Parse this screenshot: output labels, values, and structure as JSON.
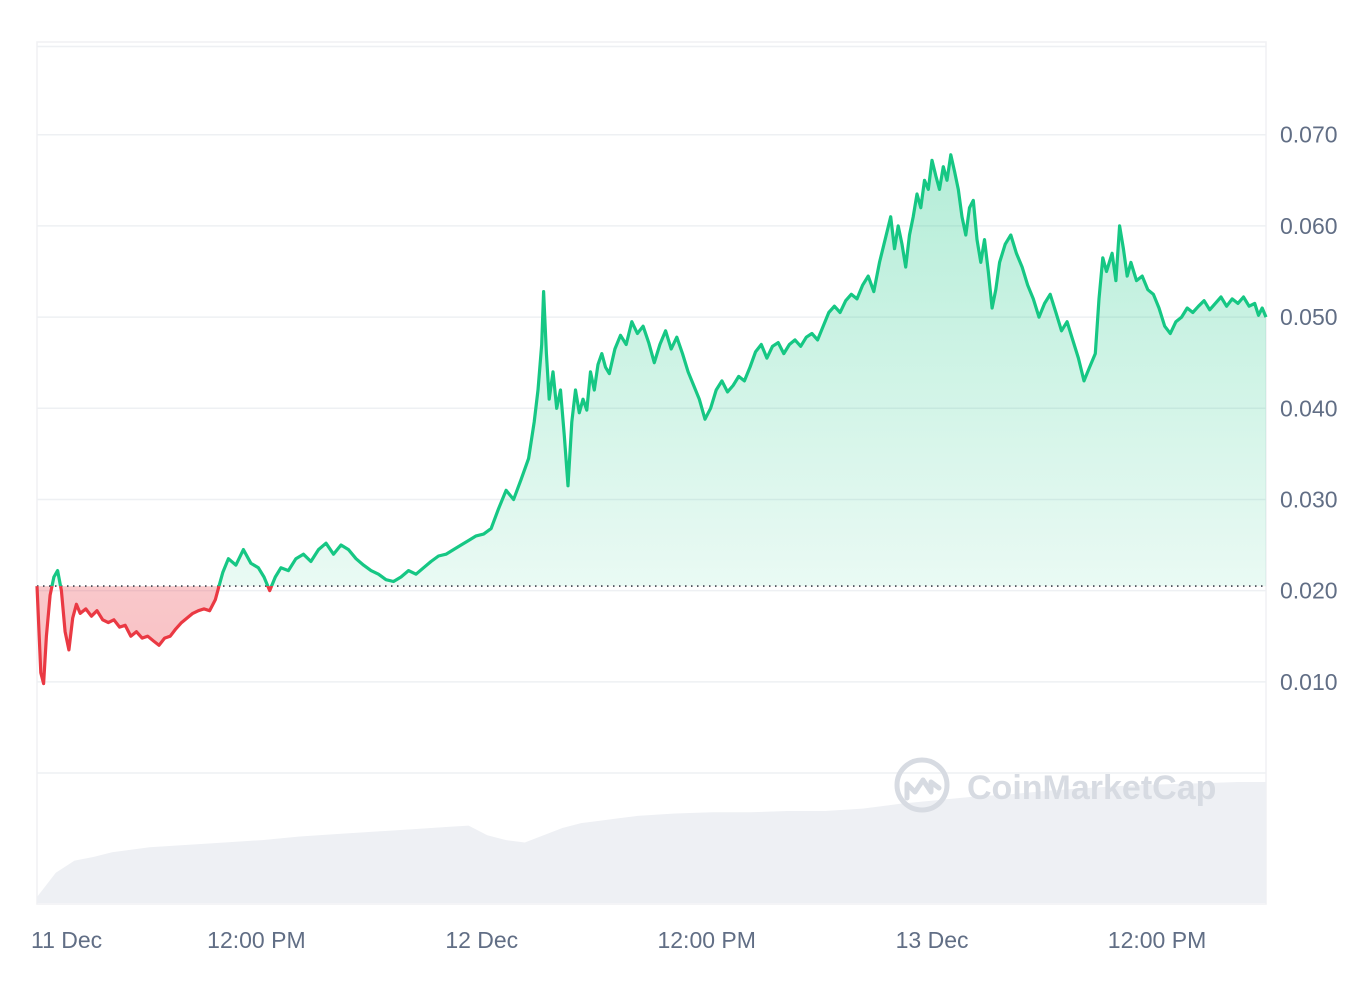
{
  "chart_data": {
    "type": "area",
    "x_axis": {
      "start": "11 Dec 00:00",
      "end": "13 Dec 23:00",
      "ticks": [
        {
          "label": "11 Dec",
          "hours": 0
        },
        {
          "label": "12:00 PM",
          "hours": 12
        },
        {
          "label": "12 Dec",
          "hours": 24
        },
        {
          "label": "12:00 PM",
          "hours": 36
        },
        {
          "label": "13 Dec",
          "hours": 48
        },
        {
          "label": "12:00 PM",
          "hours": 60
        }
      ]
    },
    "y_axis": {
      "position": "right",
      "ylim": [
        0,
        0.08
      ],
      "ticks": [
        "0.010",
        "0.020",
        "0.030",
        "0.040",
        "0.050",
        "0.060",
        "0.070"
      ]
    },
    "baseline": 0.0205,
    "colors": {
      "above": "#16c784",
      "below": "#ea3943",
      "fill_above": "#16c784",
      "fill_below": "#ea3943",
      "volume": "#eef0f4",
      "grid": "#eef0f3",
      "axis_text": "#616e85",
      "watermark": "#d7dbe2"
    },
    "series": [
      {
        "points": [
          [
            0.0,
            0.0205
          ],
          [
            0.2,
            0.011
          ],
          [
            0.35,
            0.0098
          ],
          [
            0.5,
            0.015
          ],
          [
            0.7,
            0.0195
          ],
          [
            0.9,
            0.0215
          ],
          [
            1.1,
            0.0222
          ],
          [
            1.3,
            0.02
          ],
          [
            1.5,
            0.0155
          ],
          [
            1.7,
            0.0135
          ],
          [
            1.9,
            0.017
          ],
          [
            2.1,
            0.0185
          ],
          [
            2.3,
            0.0175
          ],
          [
            2.6,
            0.018
          ],
          [
            2.9,
            0.0172
          ],
          [
            3.2,
            0.0178
          ],
          [
            3.5,
            0.0168
          ],
          [
            3.8,
            0.0165
          ],
          [
            4.1,
            0.0168
          ],
          [
            4.4,
            0.016
          ],
          [
            4.7,
            0.0162
          ],
          [
            5.0,
            0.015
          ],
          [
            5.3,
            0.0155
          ],
          [
            5.6,
            0.0148
          ],
          [
            5.9,
            0.015
          ],
          [
            6.2,
            0.0145
          ],
          [
            6.5,
            0.014
          ],
          [
            6.8,
            0.0148
          ],
          [
            7.1,
            0.015
          ],
          [
            7.4,
            0.0158
          ],
          [
            7.7,
            0.0165
          ],
          [
            8.0,
            0.017
          ],
          [
            8.3,
            0.0175
          ],
          [
            8.6,
            0.0178
          ],
          [
            8.9,
            0.018
          ],
          [
            9.2,
            0.0178
          ],
          [
            9.5,
            0.019
          ],
          [
            9.7,
            0.0205
          ],
          [
            9.9,
            0.022
          ],
          [
            10.2,
            0.0235
          ],
          [
            10.6,
            0.0228
          ],
          [
            11.0,
            0.0245
          ],
          [
            11.4,
            0.023
          ],
          [
            11.8,
            0.0225
          ],
          [
            12.1,
            0.0215
          ],
          [
            12.4,
            0.02
          ],
          [
            12.7,
            0.0215
          ],
          [
            13.0,
            0.0225
          ],
          [
            13.4,
            0.0222
          ],
          [
            13.8,
            0.0235
          ],
          [
            14.2,
            0.024
          ],
          [
            14.6,
            0.0232
          ],
          [
            15.0,
            0.0245
          ],
          [
            15.4,
            0.0252
          ],
          [
            15.8,
            0.024
          ],
          [
            16.2,
            0.025
          ],
          [
            16.6,
            0.0245
          ],
          [
            17.0,
            0.0235
          ],
          [
            17.4,
            0.0228
          ],
          [
            17.8,
            0.0222
          ],
          [
            18.2,
            0.0218
          ],
          [
            18.6,
            0.0212
          ],
          [
            19.0,
            0.021
          ],
          [
            19.4,
            0.0215
          ],
          [
            19.8,
            0.0222
          ],
          [
            20.2,
            0.0218
          ],
          [
            20.6,
            0.0225
          ],
          [
            21.0,
            0.0232
          ],
          [
            21.4,
            0.0238
          ],
          [
            21.8,
            0.024
          ],
          [
            22.2,
            0.0245
          ],
          [
            22.6,
            0.025
          ],
          [
            23.0,
            0.0255
          ],
          [
            23.4,
            0.026
          ],
          [
            23.8,
            0.0262
          ],
          [
            24.2,
            0.0268
          ],
          [
            24.6,
            0.029
          ],
          [
            25.0,
            0.031
          ],
          [
            25.4,
            0.03
          ],
          [
            25.8,
            0.0322
          ],
          [
            26.2,
            0.0345
          ],
          [
            26.5,
            0.0385
          ],
          [
            26.7,
            0.042
          ],
          [
            26.9,
            0.047
          ],
          [
            27.0,
            0.0528
          ],
          [
            27.15,
            0.046
          ],
          [
            27.3,
            0.041
          ],
          [
            27.5,
            0.044
          ],
          [
            27.7,
            0.04
          ],
          [
            27.9,
            0.042
          ],
          [
            28.1,
            0.037
          ],
          [
            28.3,
            0.0315
          ],
          [
            28.5,
            0.0385
          ],
          [
            28.7,
            0.042
          ],
          [
            28.9,
            0.0395
          ],
          [
            29.1,
            0.041
          ],
          [
            29.3,
            0.0398
          ],
          [
            29.5,
            0.044
          ],
          [
            29.7,
            0.042
          ],
          [
            29.9,
            0.0448
          ],
          [
            30.1,
            0.046
          ],
          [
            30.3,
            0.0445
          ],
          [
            30.5,
            0.0438
          ],
          [
            30.8,
            0.0465
          ],
          [
            31.1,
            0.048
          ],
          [
            31.4,
            0.047
          ],
          [
            31.7,
            0.0495
          ],
          [
            32.0,
            0.0482
          ],
          [
            32.3,
            0.049
          ],
          [
            32.6,
            0.0472
          ],
          [
            32.9,
            0.045
          ],
          [
            33.2,
            0.047
          ],
          [
            33.5,
            0.0485
          ],
          [
            33.8,
            0.0465
          ],
          [
            34.1,
            0.0478
          ],
          [
            34.4,
            0.046
          ],
          [
            34.7,
            0.044
          ],
          [
            35.0,
            0.0425
          ],
          [
            35.3,
            0.041
          ],
          [
            35.6,
            0.0388
          ],
          [
            35.9,
            0.04
          ],
          [
            36.2,
            0.042
          ],
          [
            36.5,
            0.043
          ],
          [
            36.8,
            0.0418
          ],
          [
            37.1,
            0.0425
          ],
          [
            37.4,
            0.0435
          ],
          [
            37.7,
            0.043
          ],
          [
            38.0,
            0.0445
          ],
          [
            38.3,
            0.0462
          ],
          [
            38.6,
            0.047
          ],
          [
            38.9,
            0.0455
          ],
          [
            39.2,
            0.0468
          ],
          [
            39.5,
            0.0472
          ],
          [
            39.8,
            0.046
          ],
          [
            40.1,
            0.047
          ],
          [
            40.4,
            0.0475
          ],
          [
            40.7,
            0.0468
          ],
          [
            41.0,
            0.0478
          ],
          [
            41.3,
            0.0482
          ],
          [
            41.6,
            0.0475
          ],
          [
            41.9,
            0.049
          ],
          [
            42.2,
            0.0505
          ],
          [
            42.5,
            0.0512
          ],
          [
            42.8,
            0.0505
          ],
          [
            43.1,
            0.0518
          ],
          [
            43.4,
            0.0525
          ],
          [
            43.7,
            0.052
          ],
          [
            44.0,
            0.0535
          ],
          [
            44.3,
            0.0545
          ],
          [
            44.6,
            0.0528
          ],
          [
            44.9,
            0.056
          ],
          [
            45.2,
            0.0585
          ],
          [
            45.5,
            0.061
          ],
          [
            45.7,
            0.0575
          ],
          [
            45.9,
            0.06
          ],
          [
            46.1,
            0.058
          ],
          [
            46.3,
            0.0555
          ],
          [
            46.5,
            0.059
          ],
          [
            46.7,
            0.061
          ],
          [
            46.9,
            0.0635
          ],
          [
            47.1,
            0.062
          ],
          [
            47.3,
            0.065
          ],
          [
            47.5,
            0.064
          ],
          [
            47.7,
            0.0672
          ],
          [
            47.9,
            0.0655
          ],
          [
            48.1,
            0.064
          ],
          [
            48.3,
            0.0665
          ],
          [
            48.5,
            0.065
          ],
          [
            48.7,
            0.0678
          ],
          [
            48.9,
            0.066
          ],
          [
            49.1,
            0.064
          ],
          [
            49.3,
            0.061
          ],
          [
            49.5,
            0.059
          ],
          [
            49.7,
            0.062
          ],
          [
            49.9,
            0.0628
          ],
          [
            50.1,
            0.0585
          ],
          [
            50.3,
            0.056
          ],
          [
            50.5,
            0.0585
          ],
          [
            50.7,
            0.055
          ],
          [
            50.9,
            0.051
          ],
          [
            51.1,
            0.053
          ],
          [
            51.3,
            0.056
          ],
          [
            51.6,
            0.058
          ],
          [
            51.9,
            0.059
          ],
          [
            52.2,
            0.057
          ],
          [
            52.5,
            0.0555
          ],
          [
            52.8,
            0.0535
          ],
          [
            53.1,
            0.052
          ],
          [
            53.4,
            0.05
          ],
          [
            53.7,
            0.0515
          ],
          [
            54.0,
            0.0525
          ],
          [
            54.3,
            0.0505
          ],
          [
            54.6,
            0.0485
          ],
          [
            54.9,
            0.0495
          ],
          [
            55.2,
            0.0475
          ],
          [
            55.5,
            0.0455
          ],
          [
            55.8,
            0.043
          ],
          [
            56.1,
            0.0445
          ],
          [
            56.4,
            0.046
          ],
          [
            56.6,
            0.052
          ],
          [
            56.8,
            0.0565
          ],
          [
            57.0,
            0.055
          ],
          [
            57.3,
            0.057
          ],
          [
            57.5,
            0.054
          ],
          [
            57.7,
            0.06
          ],
          [
            57.9,
            0.0575
          ],
          [
            58.1,
            0.0545
          ],
          [
            58.3,
            0.056
          ],
          [
            58.6,
            0.054
          ],
          [
            58.9,
            0.0545
          ],
          [
            59.2,
            0.053
          ],
          [
            59.5,
            0.0525
          ],
          [
            59.8,
            0.051
          ],
          [
            60.1,
            0.049
          ],
          [
            60.4,
            0.0482
          ],
          [
            60.7,
            0.0495
          ],
          [
            61.0,
            0.05
          ],
          [
            61.3,
            0.051
          ],
          [
            61.6,
            0.0505
          ],
          [
            61.9,
            0.0512
          ],
          [
            62.2,
            0.0518
          ],
          [
            62.5,
            0.0508
          ],
          [
            62.8,
            0.0515
          ],
          [
            63.1,
            0.0522
          ],
          [
            63.4,
            0.0512
          ],
          [
            63.7,
            0.052
          ],
          [
            64.0,
            0.0515
          ],
          [
            64.3,
            0.0522
          ],
          [
            64.6,
            0.0512
          ],
          [
            64.9,
            0.0515
          ],
          [
            65.1,
            0.0502
          ],
          [
            65.3,
            0.051
          ],
          [
            65.5,
            0.05
          ]
        ]
      }
    ],
    "volume": [
      [
        0.0,
        0.05
      ],
      [
        1.0,
        0.25
      ],
      [
        2.0,
        0.35
      ],
      [
        3.0,
        0.38
      ],
      [
        4.0,
        0.42
      ],
      [
        5.0,
        0.44
      ],
      [
        6.0,
        0.46
      ],
      [
        8.0,
        0.48
      ],
      [
        10.0,
        0.5
      ],
      [
        12.0,
        0.52
      ],
      [
        14.0,
        0.55
      ],
      [
        16.0,
        0.57
      ],
      [
        18.0,
        0.59
      ],
      [
        20.0,
        0.61
      ],
      [
        22.0,
        0.63
      ],
      [
        23.0,
        0.64
      ],
      [
        24.0,
        0.56
      ],
      [
        25.0,
        0.52
      ],
      [
        26.0,
        0.5
      ],
      [
        27.0,
        0.56
      ],
      [
        28.0,
        0.62
      ],
      [
        29.0,
        0.66
      ],
      [
        30.0,
        0.68
      ],
      [
        31.0,
        0.7
      ],
      [
        32.0,
        0.72
      ],
      [
        34.0,
        0.74
      ],
      [
        36.0,
        0.75
      ],
      [
        38.0,
        0.75
      ],
      [
        40.0,
        0.76
      ],
      [
        42.0,
        0.76
      ],
      [
        44.0,
        0.78
      ],
      [
        46.0,
        0.82
      ],
      [
        48.0,
        0.85
      ],
      [
        50.0,
        0.88
      ],
      [
        52.0,
        0.9
      ],
      [
        54.0,
        0.93
      ],
      [
        56.0,
        0.95
      ],
      [
        58.0,
        0.97
      ],
      [
        60.0,
        0.98
      ],
      [
        62.0,
        0.99
      ],
      [
        64.0,
        1.0
      ],
      [
        65.5,
        1.0
      ]
    ]
  },
  "watermark": {
    "text": "CoinMarketCap",
    "icon": "coinmarketcap-logo-icon"
  }
}
